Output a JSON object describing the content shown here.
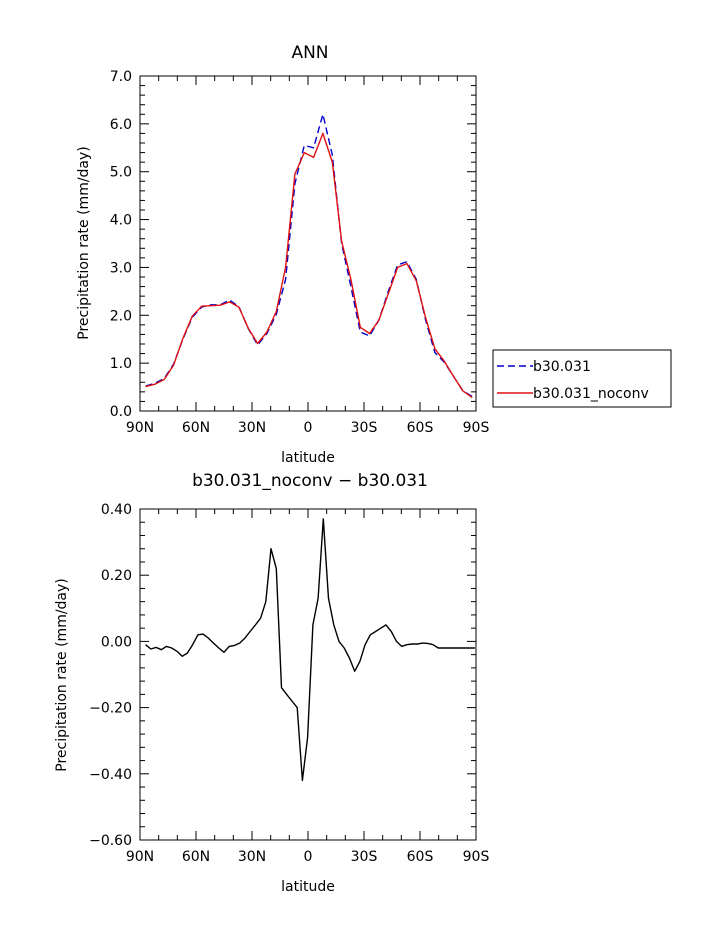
{
  "chart_data": [
    {
      "type": "line",
      "title": "ANN",
      "xlabel": "latitude",
      "ylabel": "Precipitation rate (mm/day)",
      "ylim": [
        0,
        7
      ],
      "xlim": [
        90,
        -90
      ],
      "xticks": [
        {
          "value": 90,
          "label": "90N"
        },
        {
          "value": 60,
          "label": "60N"
        },
        {
          "value": 30,
          "label": "30N"
        },
        {
          "value": 0,
          "label": "0"
        },
        {
          "value": -30,
          "label": "30S"
        },
        {
          "value": -60,
          "label": "60S"
        },
        {
          "value": -90,
          "label": "90S"
        }
      ],
      "yticks": [
        {
          "value": 0,
          "label": "0.0"
        },
        {
          "value": 1,
          "label": "1.0"
        },
        {
          "value": 2,
          "label": "2.0"
        },
        {
          "value": 3,
          "label": "3.0"
        },
        {
          "value": 4,
          "label": "4.0"
        },
        {
          "value": 5,
          "label": "5.0"
        },
        {
          "value": 6,
          "label": "6.0"
        },
        {
          "value": 7,
          "label": "7.0"
        }
      ],
      "legend_position": "right",
      "x": [
        87,
        82,
        77,
        72,
        67,
        62,
        57,
        52,
        47,
        42,
        37,
        32,
        27,
        22,
        17,
        12,
        7,
        2,
        -3,
        -8,
        -13,
        -18,
        -23,
        -28,
        -33,
        -38,
        -43,
        -48,
        -53,
        -58,
        -63,
        -68,
        -73,
        -78,
        -83,
        -88
      ],
      "series": [
        {
          "name": "b30.031",
          "color": "#0000cc",
          "dash": true,
          "values": [
            0.52,
            0.58,
            0.68,
            0.98,
            1.5,
            1.96,
            2.17,
            2.22,
            2.22,
            2.32,
            2.18,
            1.72,
            1.38,
            1.62,
            2.02,
            2.75,
            4.75,
            5.55,
            5.5,
            6.2,
            5.35,
            3.5,
            2.6,
            1.65,
            1.57,
            1.9,
            2.5,
            3.05,
            3.12,
            2.75,
            1.9,
            1.22,
            1.02,
            0.72,
            0.42,
            0.3
          ]
        },
        {
          "name": "b30.031_noconv",
          "color": "#e01010",
          "dash": false,
          "values": [
            0.51,
            0.56,
            0.66,
            0.96,
            1.52,
            1.98,
            2.19,
            2.2,
            2.21,
            2.28,
            2.17,
            1.73,
            1.41,
            1.65,
            2.08,
            3.0,
            4.95,
            5.4,
            5.3,
            5.8,
            5.2,
            3.55,
            2.75,
            1.75,
            1.62,
            1.9,
            2.45,
            3.0,
            3.08,
            2.72,
            1.95,
            1.3,
            1.04,
            0.72,
            0.42,
            0.28
          ]
        }
      ]
    },
    {
      "type": "line",
      "title": "b30.031_noconv − b30.031",
      "xlabel": "latitude",
      "ylabel": "Precipitation rate (mm/day)",
      "ylim": [
        -0.6,
        0.4
      ],
      "xlim": [
        90,
        -90
      ],
      "xticks": [
        {
          "value": 90,
          "label": "90N"
        },
        {
          "value": 60,
          "label": "60N"
        },
        {
          "value": 30,
          "label": "30N"
        },
        {
          "value": 0,
          "label": "0"
        },
        {
          "value": -30,
          "label": "30S"
        },
        {
          "value": -60,
          "label": "60S"
        },
        {
          "value": -90,
          "label": "90S"
        }
      ],
      "yticks": [
        {
          "value": 0.4,
          "label": "0.40"
        },
        {
          "value": 0.2,
          "label": "0.20"
        },
        {
          "value": 0.0,
          "label": "0.00"
        },
        {
          "value": -0.2,
          "label": "−0.20"
        },
        {
          "value": -0.4,
          "label": "−0.40"
        },
        {
          "value": -0.6,
          "label": "−0.60"
        }
      ],
      "x": [
        87,
        84.2,
        81.4,
        78.6,
        75.8,
        73,
        70.2,
        67.4,
        64.6,
        61.8,
        59,
        56.2,
        53.4,
        50.6,
        47.8,
        45,
        42.2,
        39.4,
        36.6,
        33.8,
        31,
        28.2,
        25.4,
        22.6,
        19.8,
        17,
        14.2,
        11.4,
        8.6,
        5.8,
        3,
        0.2,
        -2.6,
        -5.4,
        -8.2,
        -11,
        -13.8,
        -16.6,
        -19.4,
        -22.2,
        -25,
        -27.8,
        -30.6,
        -33.4,
        -36.2,
        -39,
        -41.8,
        -44.6,
        -47.4,
        -50.2,
        -53,
        -55.8,
        -58.6,
        -61.4,
        -64.2,
        -67,
        -69.8,
        -72.6,
        -75.4,
        -78.2,
        -81,
        -83.8,
        -86.6,
        -89.4
      ],
      "series": [
        {
          "name": "",
          "color": "#000000",
          "dash": false,
          "values": [
            -0.01,
            -0.023,
            -0.018,
            -0.025,
            -0.015,
            -0.02,
            -0.03,
            -0.045,
            -0.035,
            -0.01,
            0.02,
            0.022,
            0.01,
            -0.005,
            -0.02,
            -0.033,
            -0.015,
            -0.012,
            -0.005,
            0.01,
            0.03,
            0.05,
            0.07,
            0.12,
            0.28,
            0.22,
            -0.14,
            -0.16,
            -0.18,
            -0.2,
            -0.42,
            -0.29,
            0.05,
            0.13,
            0.37,
            0.13,
            0.05,
            0.0,
            -0.02,
            -0.05,
            -0.09,
            -0.06,
            -0.01,
            0.02,
            0.03,
            0.04,
            0.05,
            0.03,
            0.0,
            -0.015,
            -0.01,
            -0.008,
            -0.008,
            -0.005,
            -0.006,
            -0.01,
            -0.02,
            -0.02,
            -0.02,
            -0.02,
            -0.02,
            -0.02,
            -0.02,
            -0.02
          ]
        }
      ]
    }
  ]
}
